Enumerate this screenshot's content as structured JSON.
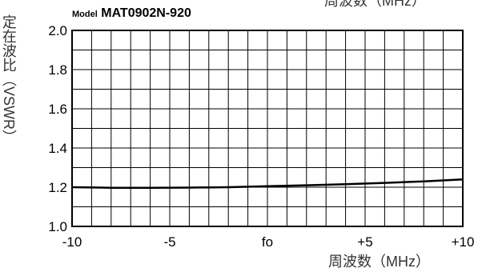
{
  "chart_data": {
    "type": "line",
    "title_prefix": "Model",
    "title": "MAT0902N-920",
    "xlabel": "周波数（MHz）",
    "ylabel": "定在波比（VSWR）",
    "x_tick_labels": [
      "-10",
      "-5",
      "fo",
      "+5",
      "+10"
    ],
    "x_tick_values": [
      -10,
      -5,
      0,
      5,
      10
    ],
    "xlim": [
      -10,
      10
    ],
    "ylim": [
      1.0,
      2.0
    ],
    "y_tick_labels": [
      "1.0",
      "1.2",
      "1.4",
      "1.6",
      "1.8",
      "2.0"
    ],
    "y_tick_values": [
      1.0,
      1.2,
      1.4,
      1.6,
      1.8,
      2.0
    ],
    "grid": true,
    "series": [
      {
        "x": [
          -10,
          -8,
          -6,
          -4,
          -2,
          0,
          2,
          4,
          6,
          8,
          10
        ],
        "values": [
          1.2,
          1.197,
          1.197,
          1.198,
          1.2,
          1.205,
          1.21,
          1.215,
          1.222,
          1.23,
          1.24
        ]
      }
    ]
  }
}
